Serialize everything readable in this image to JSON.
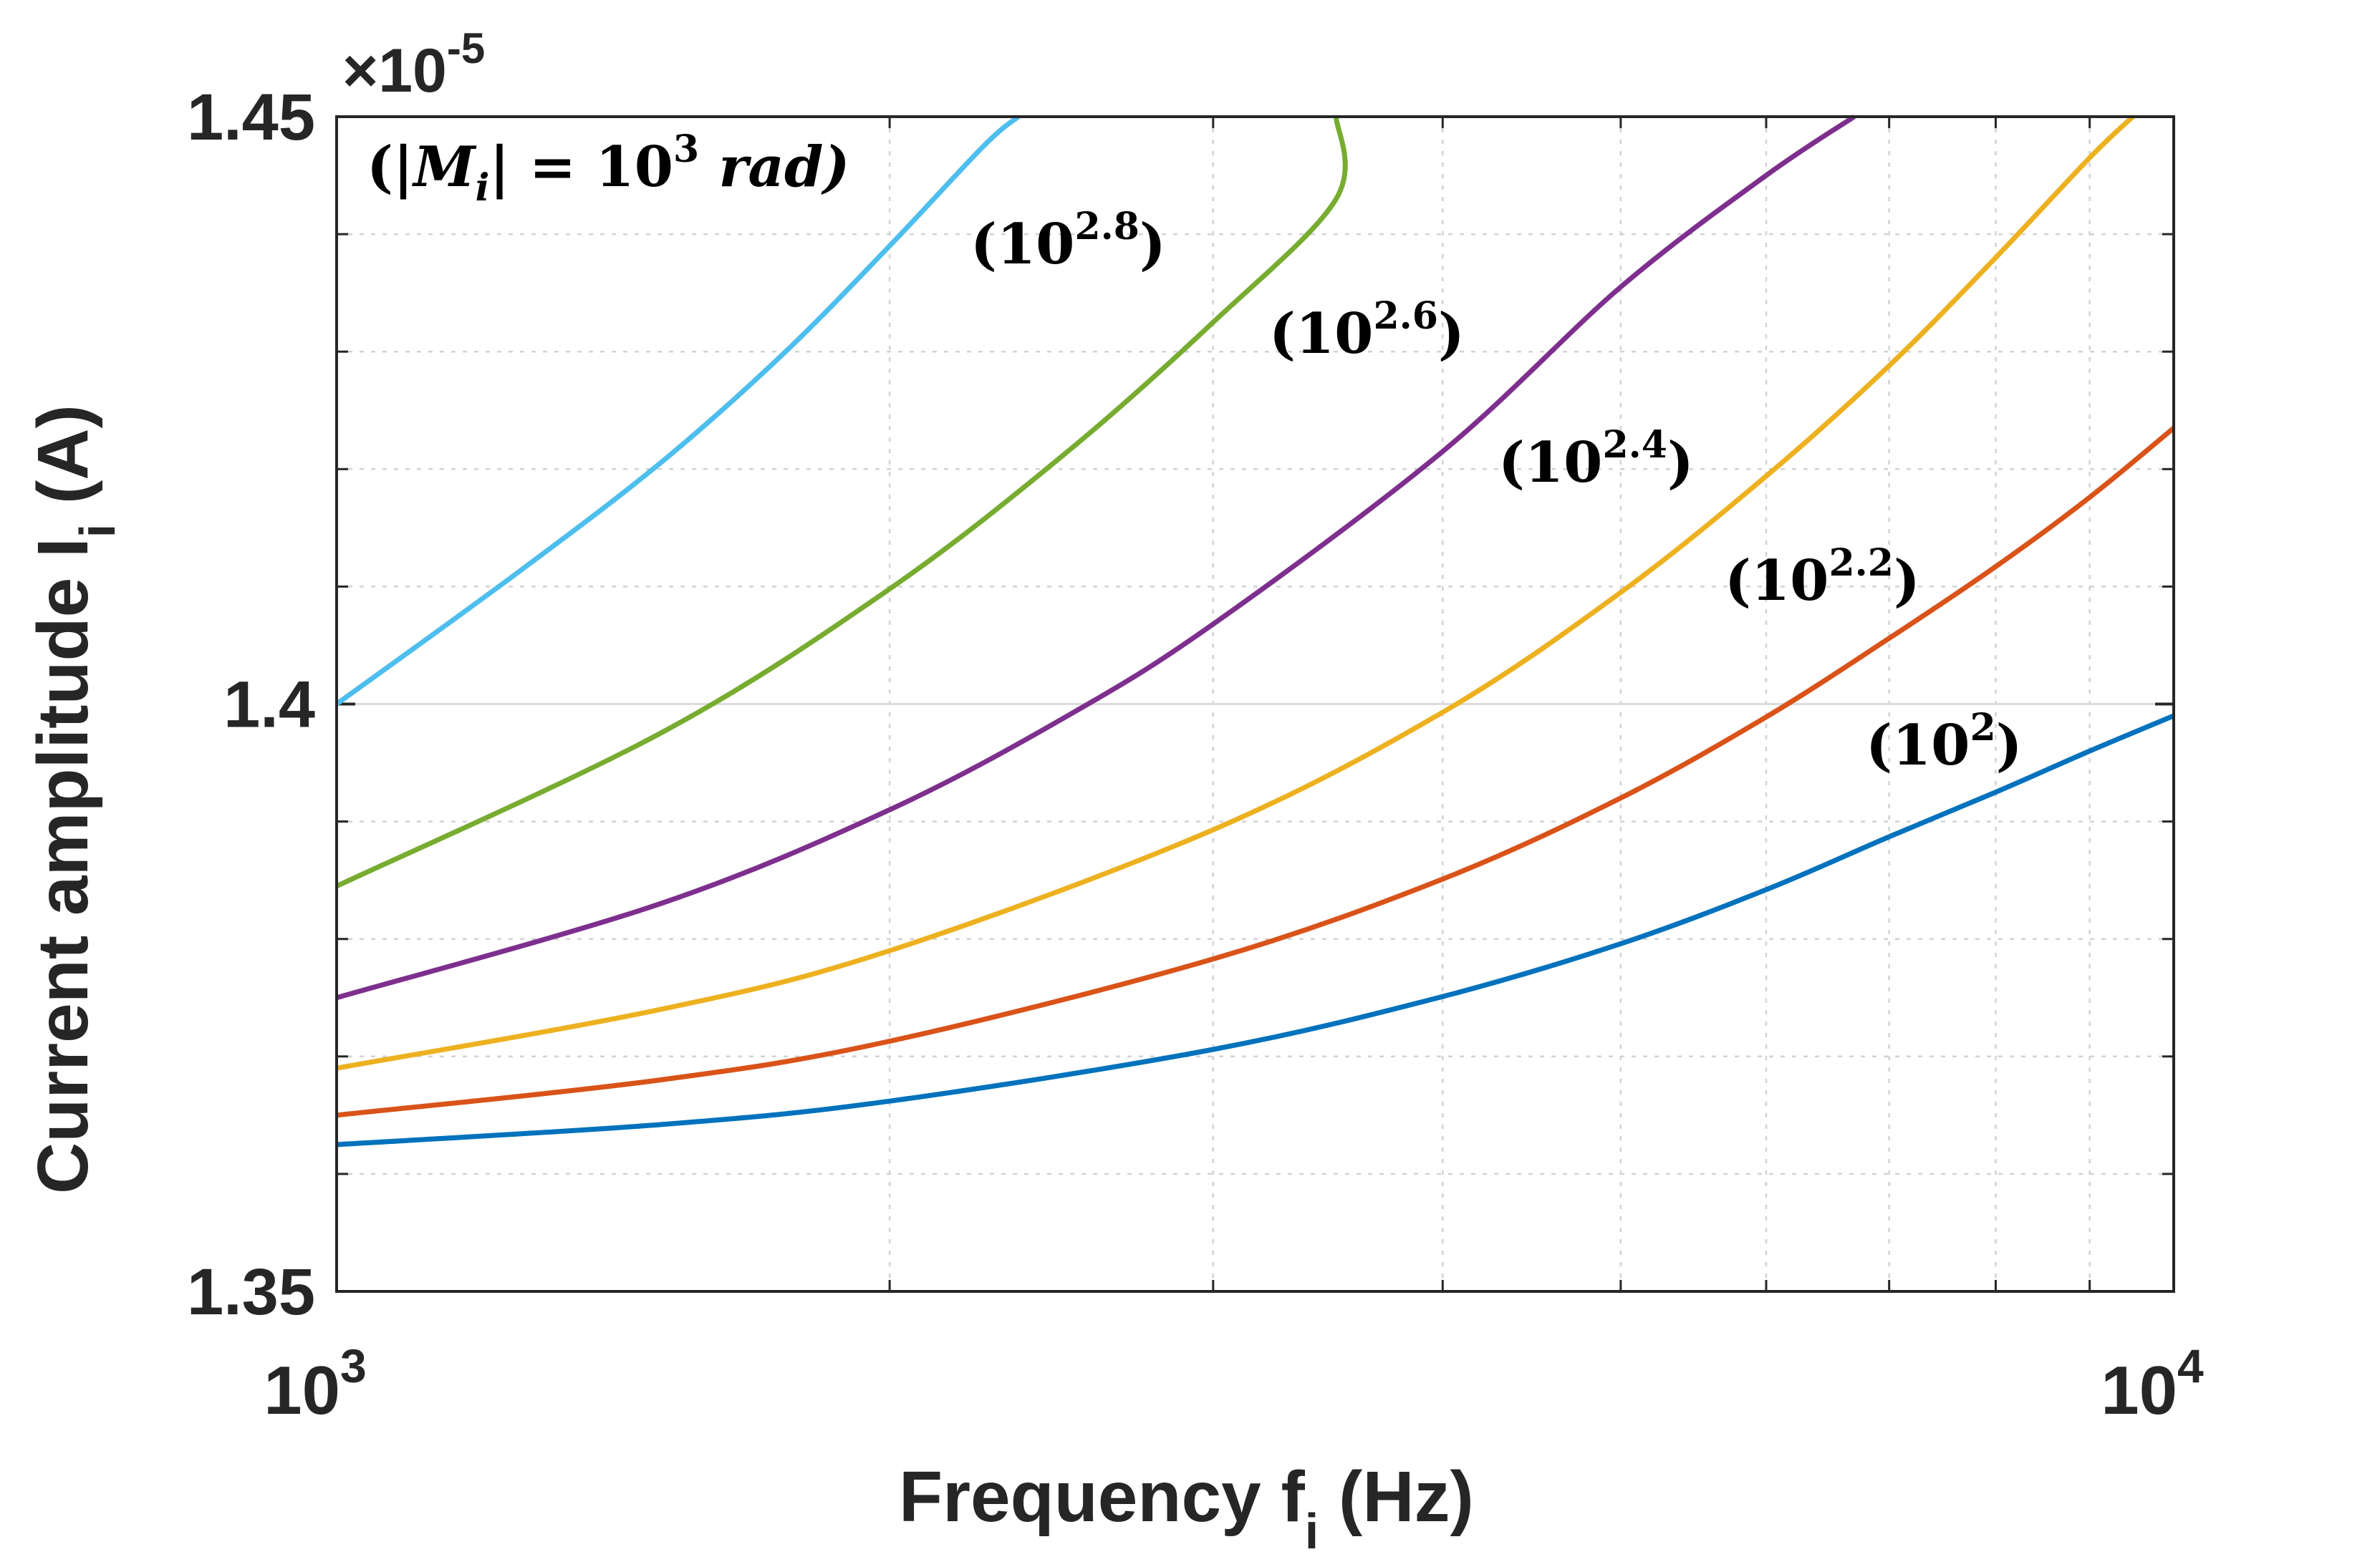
{
  "chart_data": {
    "type": "line",
    "x_scale": "log",
    "xlim": [
      1000,
      10000
    ],
    "ylim": [
      1.35,
      1.45
    ],
    "y_multiplier_label": {
      "base": "×10",
      "exp": "-5"
    },
    "xlabel": {
      "main": "Frequency f",
      "sub": "i",
      "unit": " (Hz)"
    },
    "ylabel": {
      "main": "Current amplitude I",
      "sub": "i",
      "unit": " (A)"
    },
    "y_ticks": [
      {
        "value": 1.35,
        "label": "1.35"
      },
      {
        "value": 1.4,
        "label": "1.4"
      },
      {
        "value": 1.45,
        "label": "1.45"
      }
    ],
    "x_ticks": [
      {
        "value": 1000,
        "base": "10",
        "exp": "3"
      },
      {
        "value": 10000,
        "base": "10",
        "exp": "4"
      }
    ],
    "series": [
      {
        "name": "10^2",
        "color": "#0072BD",
        "x": [
          1000,
          1500,
          2000,
          3000,
          4000,
          5000,
          6000,
          7000,
          8000,
          9000,
          10000
        ],
        "values": [
          1.3625,
          1.3642,
          1.3662,
          1.3706,
          1.3751,
          1.3796,
          1.3842,
          1.3887,
          1.3925,
          1.396,
          1.399
        ]
      },
      {
        "name": "10^2.2",
        "color": "#D95319",
        "x": [
          1000,
          1500,
          2000,
          3000,
          4000,
          5000,
          6000,
          7000,
          8000,
          9000,
          10000
        ],
        "values": [
          1.365,
          1.368,
          1.3713,
          1.3783,
          1.3851,
          1.392,
          1.3989,
          1.4056,
          1.4117,
          1.4176,
          1.4235
        ]
      },
      {
        "name": "10^2.4",
        "color": "#EDB120",
        "x": [
          1000,
          1500,
          2000,
          3000,
          4000,
          5000,
          6000,
          7000,
          8000,
          9000,
          9500
        ],
        "values": [
          1.369,
          1.374,
          1.379,
          1.3893,
          1.3993,
          1.4095,
          1.4194,
          1.4288,
          1.438,
          1.4465,
          1.45
        ]
      },
      {
        "name": "10^2.6",
        "color": "#7E2F8E",
        "x": [
          1000,
          1500,
          2000,
          2500,
          3000,
          4000,
          5000,
          6000,
          6700
        ],
        "values": [
          1.375,
          1.383,
          1.391,
          1.399,
          1.4068,
          1.4215,
          1.4355,
          1.445,
          1.45
        ]
      },
      {
        "name": "10^2.8",
        "color": "#77AC30",
        "x": [
          1000,
          1500,
          2000,
          2500,
          3000,
          3500,
          3500
        ],
        "values": [
          1.3845,
          1.3975,
          1.4098,
          1.4215,
          1.4325,
          1.443,
          1.45
        ]
      },
      {
        "name": "10^3",
        "color": "#4DBEEE",
        "x": [
          1000,
          1250,
          1500,
          1750,
          2000,
          2250,
          2350
        ],
        "values": [
          1.4,
          1.411,
          1.4205,
          1.4298,
          1.439,
          1.4475,
          1.45
        ]
      }
    ],
    "annotations": [
      {
        "text_open": "(|",
        "m": "M",
        "m_sub": "i",
        "text_mid": "| = 10",
        "exp": "3",
        "text_end": " rad)"
      },
      {
        "base": "(10",
        "exp": "2.8",
        "close": ")"
      },
      {
        "base": "(10",
        "exp": "2.6",
        "close": ")"
      },
      {
        "base": "(10",
        "exp": "2.4",
        "close": ")"
      },
      {
        "base": "(10",
        "exp": "2.2",
        "close": ")"
      },
      {
        "base": "(10",
        "exp": "2",
        "close": ")"
      }
    ]
  }
}
